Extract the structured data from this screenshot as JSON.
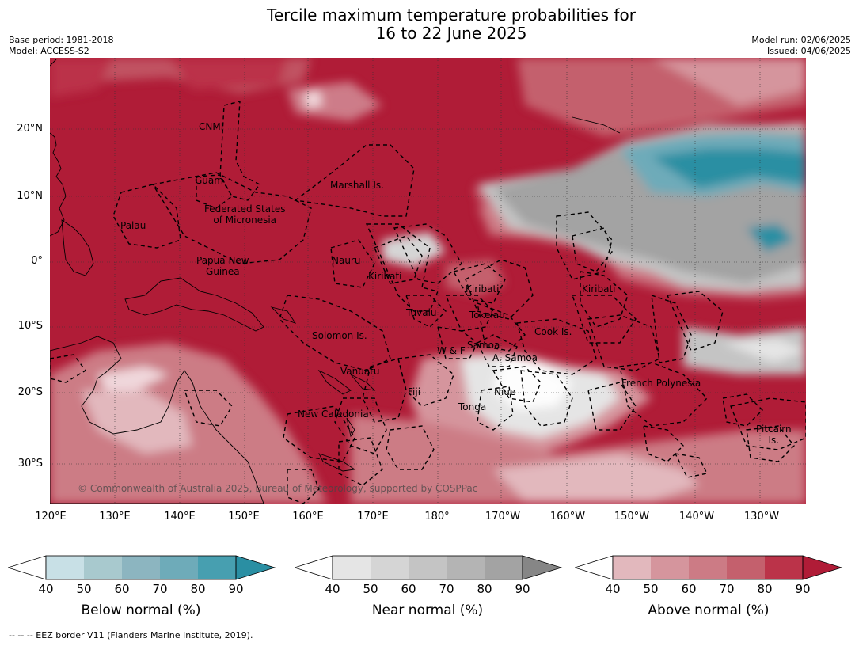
{
  "title_line1": "Tercile maximum temperature probabilities for",
  "title_line2": "16 to 22 June 2025",
  "base_period": "Base period: 1981-2018",
  "model": "Model: ACCESS-S2",
  "model_run": "Model run: 02/06/2025",
  "issued": "Issued: 04/06/2025",
  "lat_labels": [
    "20°N",
    "10°N",
    "0°",
    "10°S",
    "20°S",
    "30°S"
  ],
  "lon_labels": [
    "120°E",
    "130°E",
    "140°E",
    "150°E",
    "160°E",
    "170°E",
    "180°",
    "170°W",
    "160°W",
    "150°W",
    "140°W",
    "130°W"
  ],
  "regions": {
    "cnmi": "CNMI",
    "guam": "Guam",
    "marshall": "Marshall Is.",
    "fsm1": "Federated States",
    "fsm2": "of Micronesia",
    "palau": "Palau",
    "png1": "Papua New",
    "png2": "Guinea",
    "nauru": "Nauru",
    "kiribati_w": "Kiribati",
    "kiribati_c": "Kiribati",
    "kiribati_e": "Kiribati",
    "tuvalu": "Tuvalu",
    "tokelau": "Tokelau",
    "cook": "Cook Is.",
    "solomon": "Solomon Is.",
    "wf": "W & F",
    "samoa": "Samoa",
    "asamoa": "A. Samoa",
    "vanuatu": "Vanuatu",
    "fiji": "Fiji",
    "niue": "Niue",
    "tonga": "Tonga",
    "newcal": "New Caledonia",
    "frenchpoly": "French Polynesia",
    "pitcairn1": "Pitcairn",
    "pitcairn2": "Is."
  },
  "copyright": "© Commonwealth of Australia 2025, Bureau of Meteorology, supported by COSPPac",
  "colorbars": [
    {
      "label": "Below normal (%)",
      "ticks": [
        "40",
        "50",
        "60",
        "70",
        "80",
        "90"
      ],
      "colors": [
        "#c8e0e6",
        "#a8c9ce",
        "#8cb5c0",
        "#6eabb9",
        "#479fb0",
        "#2a8fa3"
      ]
    },
    {
      "label": "Near normal (%)",
      "ticks": [
        "40",
        "50",
        "60",
        "70",
        "80",
        "90"
      ],
      "colors": [
        "#e5e5e5",
        "#d5d5d5",
        "#c4c4c4",
        "#b4b4b4",
        "#a3a3a3",
        "#868686"
      ]
    },
    {
      "label": "Above normal (%)",
      "ticks": [
        "40",
        "50",
        "60",
        "70",
        "80",
        "90"
      ],
      "colors": [
        "#e2b8bd",
        "#d5959d",
        "#cc7b85",
        "#c4606d",
        "#bb3349",
        "#b01c37"
      ]
    }
  ],
  "footer": "--  --  -- EEZ border V11 (Flanders Marine Institute, 2019)."
}
